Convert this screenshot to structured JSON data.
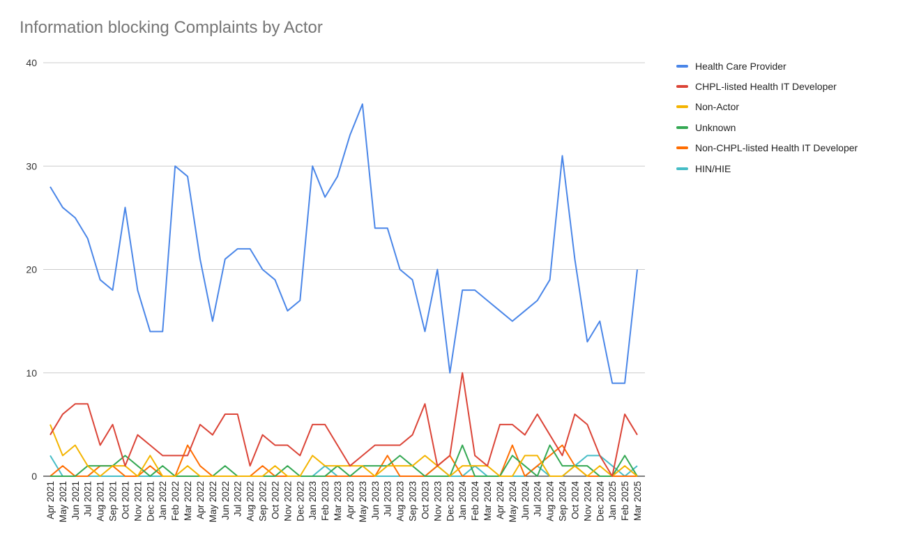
{
  "chart_data": {
    "type": "line",
    "title": "Information blocking Complaints by Actor",
    "xlabel": "",
    "ylabel": "",
    "ylim": [
      0,
      40
    ],
    "yticks": [
      0,
      10,
      20,
      30,
      40
    ],
    "grid": true,
    "legend_position": "right",
    "categories": [
      "Apr 2021",
      "May 2021",
      "Jun 2021",
      "Jul 2021",
      "Aug 2021",
      "Sep 2021",
      "Oct 2021",
      "Nov 2021",
      "Dec 2021",
      "Jan 2022",
      "Feb 2022",
      "Mar 2022",
      "Apr 2022",
      "May 2022",
      "Jun 2022",
      "Jul 2022",
      "Aug 2022",
      "Sep 2022",
      "Oct 2022",
      "Nov 2022",
      "Dec 2022",
      "Jan 2023",
      "Feb 2023",
      "Mar 2023",
      "Apr 2023",
      "May 2023",
      "Jun 2023",
      "Jul 2023",
      "Aug 2023",
      "Sep 2023",
      "Oct 2023",
      "Nov 2023",
      "Dec 2023",
      "Jan 2024",
      "Feb 2024",
      "Mar 2024",
      "Apr 2024",
      "May 2024",
      "Jun 2024",
      "Jul 2024",
      "Aug 2024",
      "Sep 2024",
      "Oct 2024",
      "Nov 2024",
      "Dec 2024",
      "Jan 2025",
      "Feb 2025",
      "Mar 2025"
    ],
    "series": [
      {
        "name": "Health Care Provider",
        "color": "#4a86e8",
        "values": [
          28,
          26,
          25,
          23,
          19,
          18,
          26,
          18,
          14,
          14,
          30,
          29,
          21,
          15,
          21,
          22,
          22,
          20,
          19,
          16,
          17,
          30,
          27,
          29,
          33,
          36,
          24,
          24,
          20,
          19,
          14,
          20,
          10,
          18,
          18,
          17,
          16,
          15,
          16,
          17,
          19,
          31,
          21,
          13,
          15,
          9,
          9,
          20
        ]
      },
      {
        "name": "CHPL-listed Health IT Developer",
        "color": "#db4437",
        "values": [
          4,
          6,
          7,
          7,
          3,
          5,
          1,
          4,
          3,
          2,
          2,
          2,
          5,
          4,
          6,
          6,
          1,
          4,
          3,
          3,
          2,
          5,
          5,
          3,
          1,
          2,
          3,
          3,
          3,
          4,
          7,
          1,
          2,
          10,
          2,
          1,
          5,
          5,
          4,
          6,
          4,
          2,
          6,
          5,
          2,
          0,
          6,
          4
        ]
      },
      {
        "name": "Non-Actor",
        "color": "#f4b400",
        "values": [
          5,
          2,
          3,
          1,
          0,
          1,
          1,
          0,
          2,
          0,
          0,
          1,
          0,
          0,
          0,
          0,
          0,
          0,
          1,
          0,
          0,
          2,
          1,
          1,
          1,
          1,
          0,
          1,
          1,
          1,
          2,
          1,
          0,
          1,
          1,
          1,
          0,
          0,
          2,
          2,
          0,
          0,
          1,
          0,
          1,
          0,
          1,
          0
        ]
      },
      {
        "name": "Unknown",
        "color": "#34a853",
        "values": [
          0,
          0,
          0,
          1,
          1,
          1,
          2,
          1,
          0,
          1,
          0,
          0,
          0,
          0,
          1,
          0,
          0,
          0,
          0,
          1,
          0,
          0,
          0,
          1,
          0,
          1,
          1,
          1,
          2,
          1,
          0,
          0,
          0,
          3,
          0,
          0,
          0,
          2,
          1,
          0,
          3,
          1,
          1,
          1,
          0,
          0,
          2,
          0
        ]
      },
      {
        "name": "Non-CHPL-listed Health IT Developer",
        "color": "#ff6d01",
        "values": [
          0,
          1,
          0,
          0,
          1,
          1,
          0,
          0,
          1,
          0,
          0,
          3,
          1,
          0,
          0,
          0,
          0,
          1,
          0,
          0,
          0,
          0,
          0,
          0,
          0,
          0,
          0,
          2,
          0,
          0,
          0,
          1,
          2,
          0,
          0,
          0,
          0,
          3,
          0,
          1,
          2,
          3,
          1,
          0,
          0,
          0,
          0,
          0
        ]
      },
      {
        "name": "HIN/HIE",
        "color": "#46bdc6",
        "values": [
          2,
          0,
          0,
          0,
          0,
          0,
          0,
          0,
          0,
          0,
          0,
          0,
          0,
          0,
          0,
          0,
          0,
          0,
          0,
          0,
          0,
          0,
          1,
          0,
          0,
          0,
          0,
          0,
          0,
          0,
          0,
          1,
          0,
          0,
          1,
          0,
          0,
          0,
          0,
          1,
          0,
          0,
          1,
          2,
          2,
          1,
          0,
          1
        ]
      }
    ]
  }
}
